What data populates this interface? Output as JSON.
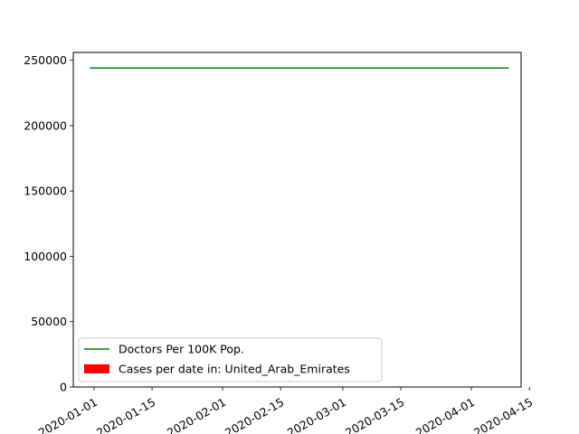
{
  "chart_data": {
    "type": "line",
    "title": "",
    "xlabel": "",
    "ylabel": "",
    "x_axis_type": "date",
    "xlim": [
      "2019-12-27",
      "2020-04-13"
    ],
    "ylim": [
      0,
      256000
    ],
    "x_ticks": [
      "2020-01-01",
      "2020-01-15",
      "2020-02-01",
      "2020-02-15",
      "2020-03-01",
      "2020-03-15",
      "2020-04-01",
      "2020-04-15"
    ],
    "y_ticks": [
      0,
      50000,
      100000,
      150000,
      200000,
      250000
    ],
    "x_tick_rotation": 30,
    "grid": false,
    "legend_position": "lower-left",
    "series": [
      {
        "name": "Doctors Per 100K Pop.",
        "kind": "line",
        "color": "#008000",
        "x": [
          "2019-12-31",
          "2020-04-10"
        ],
        "y": [
          244000,
          244000
        ]
      },
      {
        "name": "Cases per date in: United_Arab_Emirates",
        "kind": "bar",
        "color": "#ff0000",
        "x": [],
        "y": []
      }
    ]
  }
}
